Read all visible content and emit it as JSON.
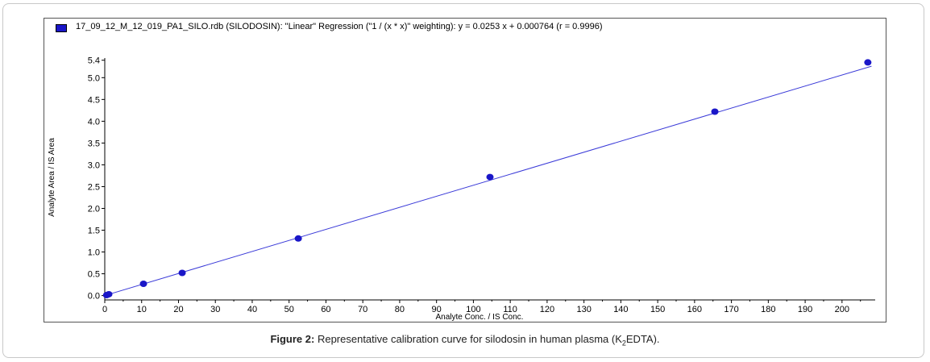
{
  "legend": {
    "text": "17_09_12_M_12_019_PA1_SILO.rdb (SILODOSIN): \"Linear\" Regression (\"1 / (x * x)\" weighting): y = 0.0253 x + 0.000764 (r = 0.9996)",
    "swatch_color": "#1a16c8"
  },
  "caption": {
    "label": "Figure 2:",
    "text_before_sub": " Representative calibration curve for silodosin in human plasma (K",
    "sub": "2",
    "text_after_sub": "EDTA)."
  },
  "chart_data": {
    "type": "scatter",
    "xlabel": "Analyte Conc. / IS Conc.",
    "ylabel": "Analyte Area / IS Area",
    "xlim": [
      0,
      209
    ],
    "ylim": [
      -0.1,
      5.45
    ],
    "x_ticks": [
      0,
      10,
      20,
      30,
      40,
      50,
      60,
      70,
      80,
      90,
      100,
      110,
      120,
      130,
      140,
      150,
      160,
      170,
      180,
      190,
      200
    ],
    "y_ticks": [
      "0.0",
      "0.5",
      "1.0",
      "1.5",
      "2.0",
      "2.5",
      "3.0",
      "3.5",
      "4.0",
      "4.5",
      "5.0",
      "5.4"
    ],
    "y_tick_values": [
      0,
      0.5,
      1.0,
      1.5,
      2.0,
      2.5,
      3.0,
      3.5,
      4.0,
      4.5,
      5.0,
      5.4
    ],
    "grid": false,
    "legend_position": "top-left",
    "series": [
      {
        "points": [
          {
            "x": 0.5,
            "y": 0.01
          },
          {
            "x": 1.1,
            "y": 0.03
          },
          {
            "x": 10.5,
            "y": 0.27
          },
          {
            "x": 21,
            "y": 0.52
          },
          {
            "x": 52.5,
            "y": 1.31
          },
          {
            "x": 104.5,
            "y": 2.72
          },
          {
            "x": 165.5,
            "y": 4.22
          },
          {
            "x": 207,
            "y": 5.35
          }
        ],
        "color": "#1a16c8"
      }
    ],
    "regression": {
      "slope": 0.0253,
      "intercept": 0.000764,
      "x_range": [
        0,
        208
      ],
      "color": "#3a3ad8"
    }
  }
}
